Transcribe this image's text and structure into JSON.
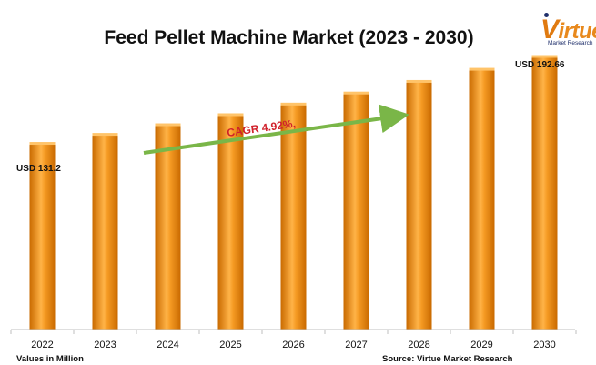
{
  "chart_data": {
    "type": "bar",
    "title": "Feed Pellet Machine Market (2023 - 2030)",
    "categories": [
      "2022",
      "2023",
      "2024",
      "2025",
      "2026",
      "2027",
      "2028",
      "2029",
      "2030"
    ],
    "values": [
      131.2,
      137.6,
      144.4,
      151.5,
      159.0,
      166.8,
      175.0,
      183.6,
      192.66
    ],
    "data_labels": {
      "first": "USD 131.2",
      "last": "USD 192.66"
    },
    "annotation": "CAGR 4.92%,",
    "units_note": "Values in Million",
    "source": "Source: Virtue Market Research",
    "xlabel": "",
    "ylabel": "",
    "ylim": [
      0,
      220
    ],
    "grid": false,
    "legend": "none",
    "colors": {
      "bar": "#f59a23",
      "bar_light": "#ffc46a",
      "bar_dark": "#c96a00",
      "arrow": "#7ab648",
      "annotation": "#d0202a"
    }
  },
  "logo": {
    "word": "irtue",
    "initial": "V",
    "tagline": "Market Research"
  }
}
